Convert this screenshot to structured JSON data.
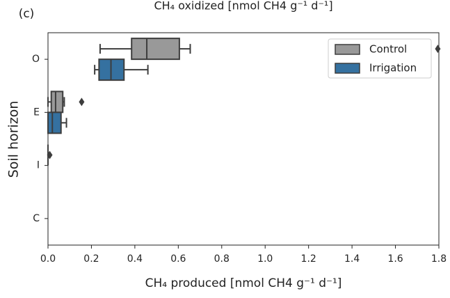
{
  "chart_data": {
    "type": "boxplot",
    "orientation": "horizontal",
    "panel_label": "(c)",
    "title": "CH₄ oxidized [nmol CH4 g⁻¹ d⁻¹]",
    "x_label": "CH₄ produced [nmol CH4 g⁻¹ d⁻¹]",
    "y_label": "Soil horizon",
    "categories": [
      "O",
      "E",
      "I",
      "C"
    ],
    "xlim": [
      0,
      1.8
    ],
    "xticks": [
      {
        "value": 0,
        "label": "0.0"
      },
      0.2,
      0.4,
      0.6,
      0.8,
      {
        "value": 1,
        "label": "1.0"
      },
      1.2,
      1.4,
      1.6,
      1.8
    ],
    "legend": "upper right",
    "series": [
      {
        "name": "Control",
        "color": "#999999",
        "boxes": [
          {
            "whislo": 0.24,
            "q1": 0.385,
            "med": 0.455,
            "q3": 0.605,
            "whishi": 0.655,
            "fliers": [
              1.795
            ]
          },
          {
            "whislo": 0.0,
            "q1": 0.015,
            "med": 0.035,
            "q3": 0.068,
            "whishi": 0.075,
            "fliers": [
              0.155
            ]
          },
          {
            "whislo": 0,
            "q1": 0,
            "med": 0,
            "q3": 0,
            "whishi": 0,
            "fliers": [
              0.008
            ]
          },
          null
        ]
      },
      {
        "name": "Irrigation",
        "color": "#3571a0",
        "boxes": [
          {
            "whislo": 0.215,
            "q1": 0.235,
            "med": 0.29,
            "q3": 0.35,
            "whishi": 0.46,
            "fliers": []
          },
          {
            "whislo": 0,
            "q1": 0.0,
            "med": 0.02,
            "q3": 0.06,
            "whishi": 0.085,
            "fliers": []
          },
          null,
          null
        ]
      }
    ]
  }
}
